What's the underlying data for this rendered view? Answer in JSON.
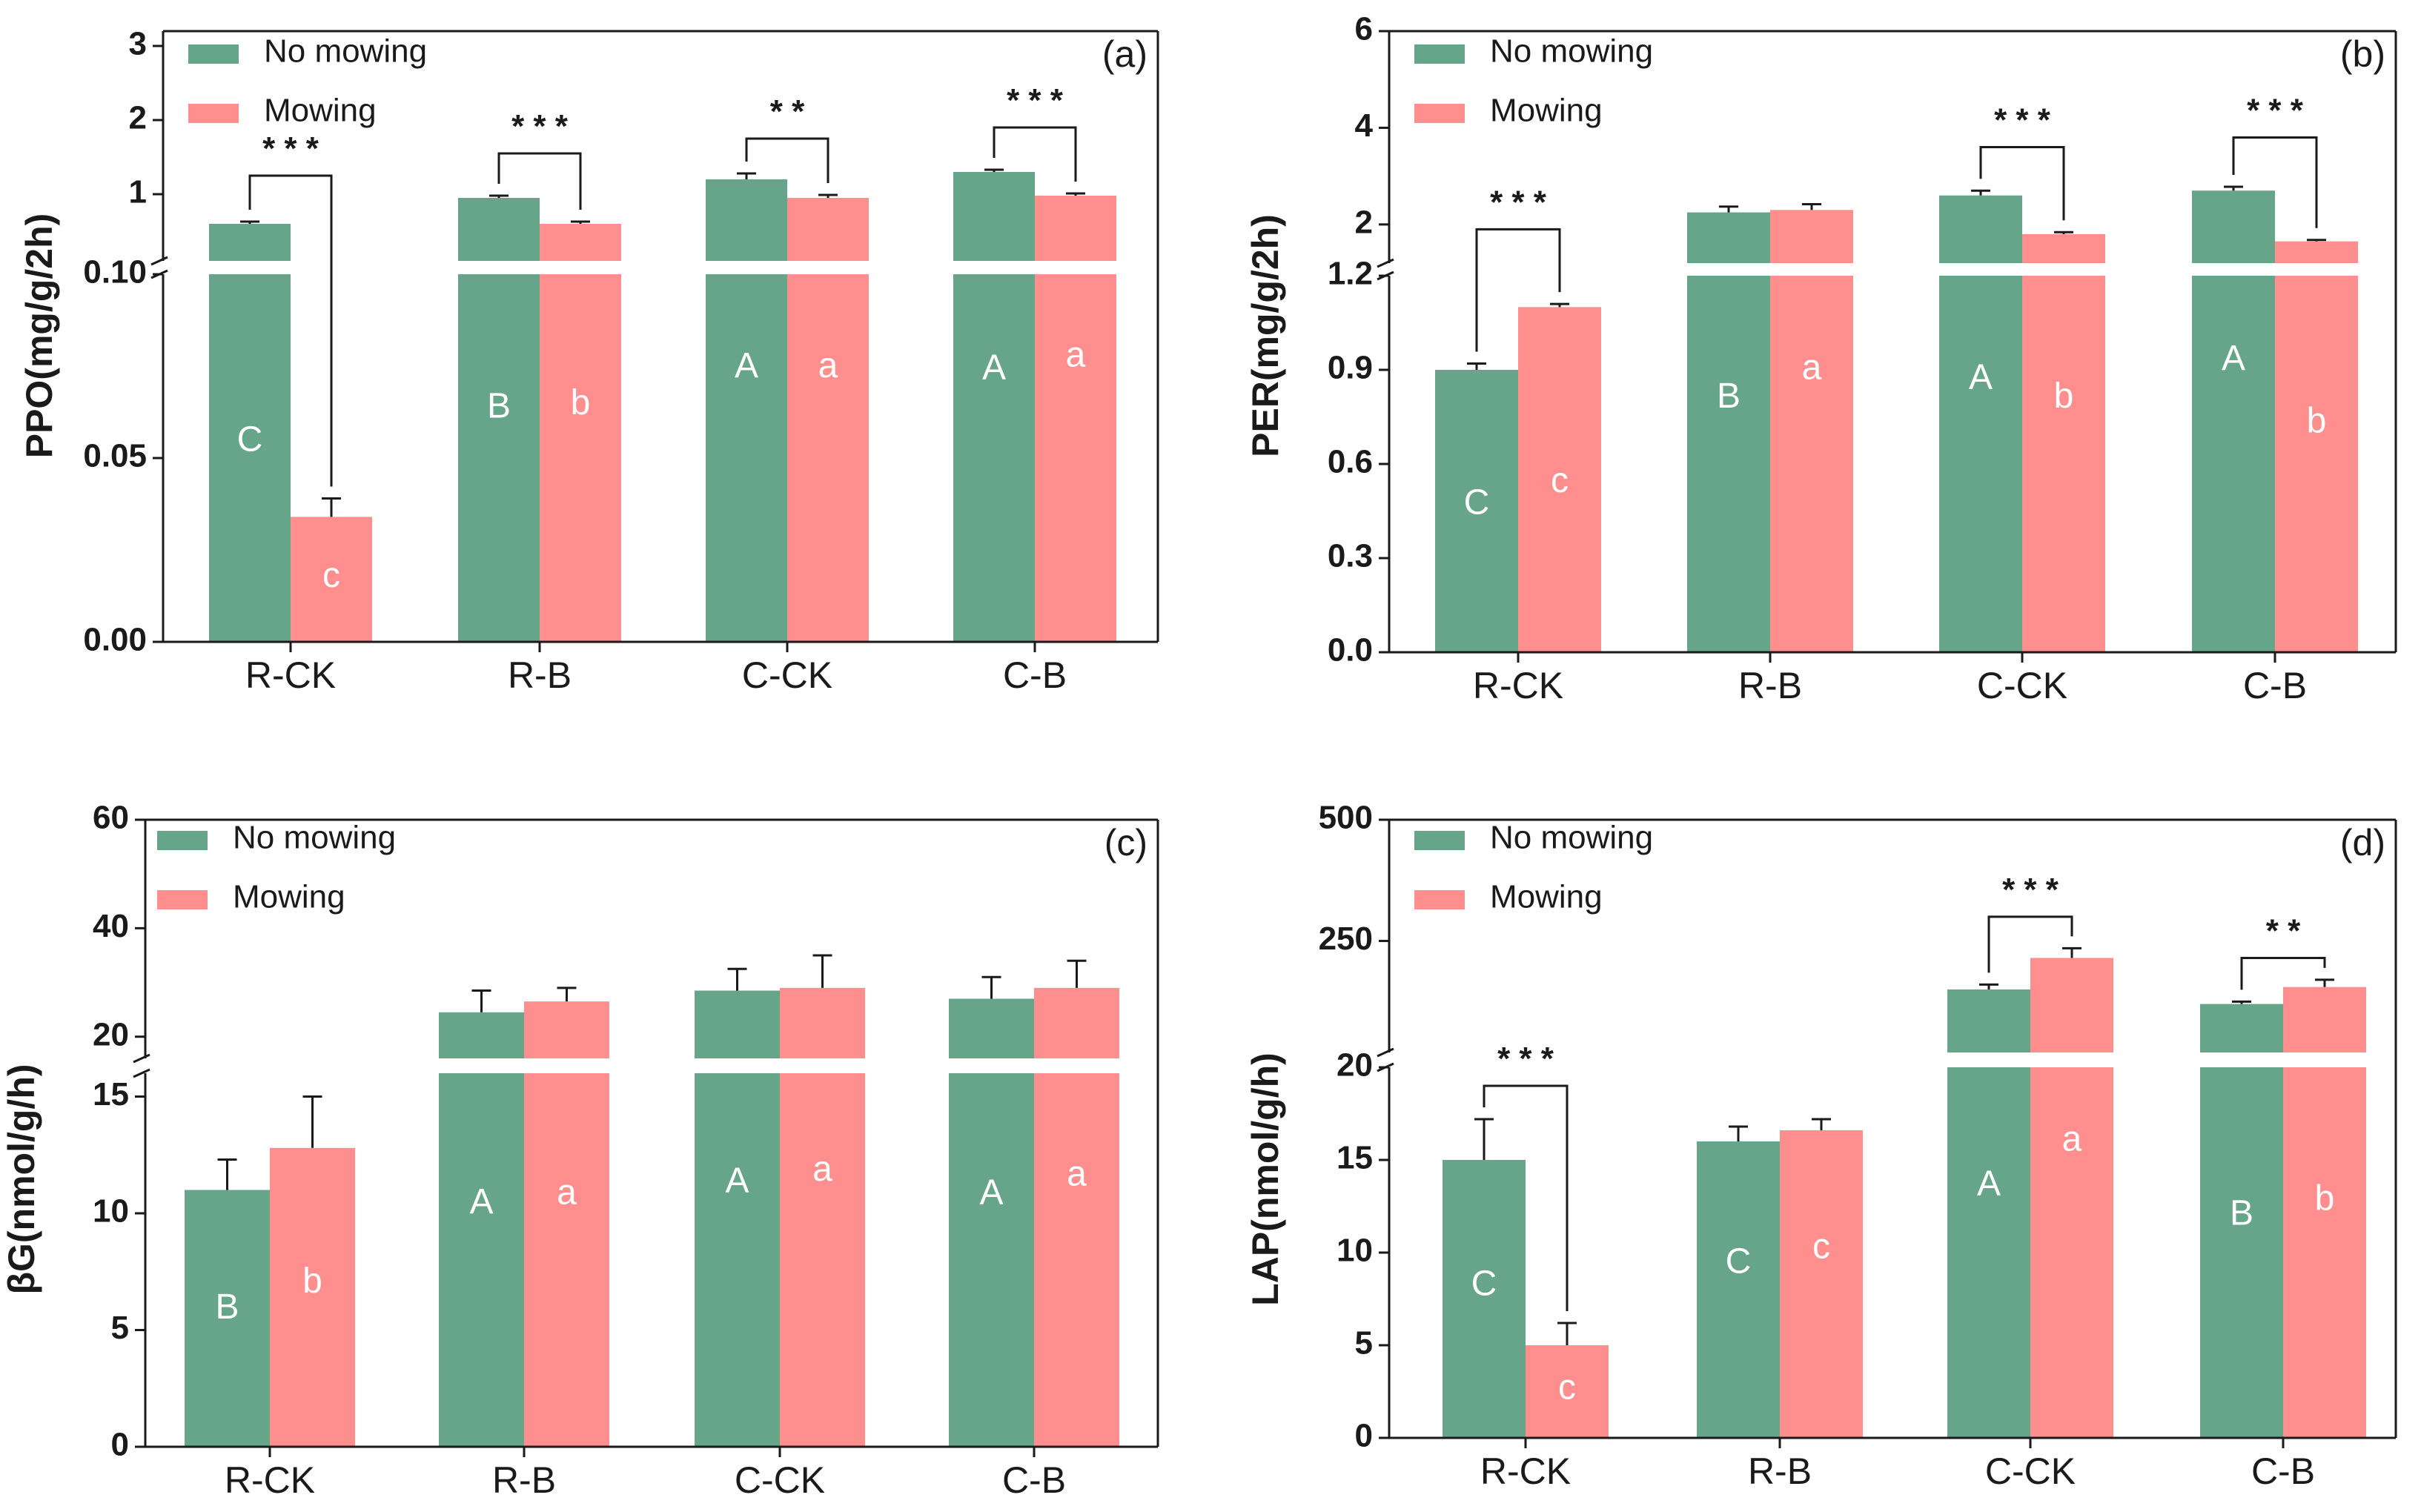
{
  "colors": {
    "no_mowing": "#66a589",
    "mowing": "#ff8f8f",
    "axis": "#1a1a1a"
  },
  "chart_data": [
    {
      "panel": "a",
      "panel_label": "(a)",
      "type": "bar",
      "ylabel": "PPO(mg/g/2h)",
      "axis_break": true,
      "categories": [
        "R-CK",
        "R-B",
        "C-CK",
        "C-B"
      ],
      "lower_axis": {
        "ylim": [
          0,
          0.1
        ],
        "ticks": [
          "0.00",
          "0.05",
          "0.10"
        ],
        "tick_values": [
          0,
          0.05,
          0.1
        ]
      },
      "upper_axis": {
        "ylim": [
          0.1,
          3.2
        ],
        "ticks": [
          "1",
          "2",
          "3"
        ],
        "tick_values": [
          1,
          2,
          3
        ]
      },
      "series": [
        {
          "name": "No mowing",
          "values": [
            0.6,
            0.95,
            1.2,
            1.3
          ],
          "errors": [
            0.03,
            0.03,
            0.08,
            0.03
          ],
          "letters": [
            "C",
            "B",
            "A",
            "A"
          ]
        },
        {
          "name": "Mowing",
          "values": [
            0.034,
            0.6,
            0.95,
            0.98
          ],
          "errors": [
            0.005,
            0.03,
            0.04,
            0.03
          ],
          "letters": [
            "c",
            "b",
            "a",
            "a"
          ]
        }
      ],
      "letter_values": [
        [
          0.0545,
          0.0635,
          0.0745,
          0.074
        ],
        [
          0.0175,
          0.0645,
          0.0745,
          0.0775
        ]
      ],
      "significance": [
        {
          "category": "R-CK",
          "label": "* * *",
          "level": 1.25
        },
        {
          "category": "R-B",
          "label": "* * *",
          "level": 1.55
        },
        {
          "category": "C-CK",
          "label": "* *",
          "level": 1.75
        },
        {
          "category": "C-B",
          "label": "* * *",
          "level": 1.9
        }
      ]
    },
    {
      "panel": "b",
      "panel_label": "(b)",
      "type": "bar",
      "ylabel": "PER(mg/g/2h)",
      "axis_break": true,
      "categories": [
        "R-CK",
        "R-B",
        "C-CK",
        "C-B"
      ],
      "lower_axis": {
        "ylim": [
          0,
          1.2
        ],
        "ticks": [
          "0.0",
          "0.3",
          "0.6",
          "0.9",
          "1.2"
        ],
        "tick_values": [
          0,
          0.3,
          0.6,
          0.9,
          1.2
        ]
      },
      "upper_axis": {
        "ylim": [
          1.2,
          6
        ],
        "ticks": [
          "2",
          "4",
          "6"
        ],
        "tick_values": [
          2,
          4,
          6
        ]
      },
      "series": [
        {
          "name": "No mowing",
          "values": [
            0.9,
            2.25,
            2.6,
            2.7
          ],
          "errors": [
            0.02,
            0.12,
            0.1,
            0.08
          ],
          "letters": [
            "C",
            "B",
            "A",
            "A"
          ]
        },
        {
          "name": "Mowing",
          "values": [
            1.1,
            2.3,
            1.8,
            1.65
          ],
          "errors": [
            0.01,
            0.12,
            0.04,
            0.03
          ],
          "letters": [
            "c",
            "a",
            "b",
            "b"
          ]
        }
      ],
      "letter_values": [
        [
          0.47,
          0.81,
          0.87,
          0.93
        ],
        [
          0.54,
          0.9,
          0.81,
          0.73
        ]
      ],
      "significance": [
        {
          "category": "R-CK",
          "label": "* * *",
          "level": 1.9
        },
        {
          "category": "C-CK",
          "label": "* * *",
          "level": 3.6
        },
        {
          "category": "C-B",
          "label": "* * *",
          "level": 3.8
        }
      ]
    },
    {
      "panel": "c",
      "panel_label": "(c)",
      "type": "bar",
      "ylabel": "βG(nmol/g/h)",
      "axis_break": true,
      "categories": [
        "R-CK",
        "R-B",
        "C-CK",
        "C-B"
      ],
      "lower_axis": {
        "ylim": [
          0,
          16
        ],
        "ticks": [
          "0",
          "5",
          "10",
          "15"
        ],
        "tick_values": [
          0,
          5,
          10,
          15
        ]
      },
      "upper_axis": {
        "ylim": [
          16,
          60
        ],
        "ticks": [
          "20",
          "40",
          "60"
        ],
        "tick_values": [
          20,
          40,
          60
        ]
      },
      "series": [
        {
          "name": "No mowing",
          "values": [
            11,
            24.5,
            28.5,
            27
          ],
          "errors": [
            1.3,
            4,
            4,
            4
          ],
          "letters": [
            "B",
            "A",
            "A",
            "A"
          ]
        },
        {
          "name": "Mowing",
          "values": [
            12.8,
            26.5,
            29,
            29
          ],
          "errors": [
            2.2,
            2.5,
            6,
            5
          ],
          "letters": [
            "b",
            "a",
            "a",
            "a"
          ]
        }
      ],
      "letter_values": [
        [
          5.9,
          10.4,
          11.3,
          10.8
        ],
        [
          7.0,
          10.8,
          11.8,
          11.6
        ]
      ]
    },
    {
      "panel": "d",
      "panel_label": "(d)",
      "type": "bar",
      "ylabel": "LAP(nmol/g/h)",
      "axis_break": true,
      "categories": [
        "R-CK",
        "R-B",
        "C-CK",
        "C-B"
      ],
      "lower_axis": {
        "ylim": [
          0,
          20
        ],
        "ticks": [
          "0",
          "5",
          "10",
          "15",
          "20"
        ],
        "tick_values": [
          0,
          5,
          10,
          15,
          20
        ]
      },
      "upper_axis": {
        "ylim": [
          20,
          500
        ],
        "ticks": [
          "250",
          "500"
        ],
        "tick_values": [
          250,
          500
        ]
      },
      "series": [
        {
          "name": "No mowing",
          "values": [
            15,
            16,
            150,
            120
          ],
          "errors": [
            2.2,
            0.8,
            10,
            5
          ],
          "letters": [
            "C",
            "C",
            "A",
            "B"
          ]
        },
        {
          "name": "Mowing",
          "values": [
            5,
            16.6,
            215,
            155
          ],
          "errors": [
            1.2,
            0.6,
            20,
            15
          ],
          "letters": [
            "c",
            "c",
            "a",
            "b"
          ]
        }
      ],
      "letter_values": [
        [
          8.2,
          9.4,
          13.6,
          12.0
        ],
        [
          2.6,
          10.2,
          16.0,
          12.8
        ]
      ],
      "significance": [
        {
          "category": "R-CK",
          "label": "* * *",
          "level": 19.0
        },
        {
          "category": "C-CK",
          "label": "* * *",
          "level": 300
        },
        {
          "category": "C-B",
          "label": "* *",
          "level": 215
        }
      ]
    }
  ]
}
